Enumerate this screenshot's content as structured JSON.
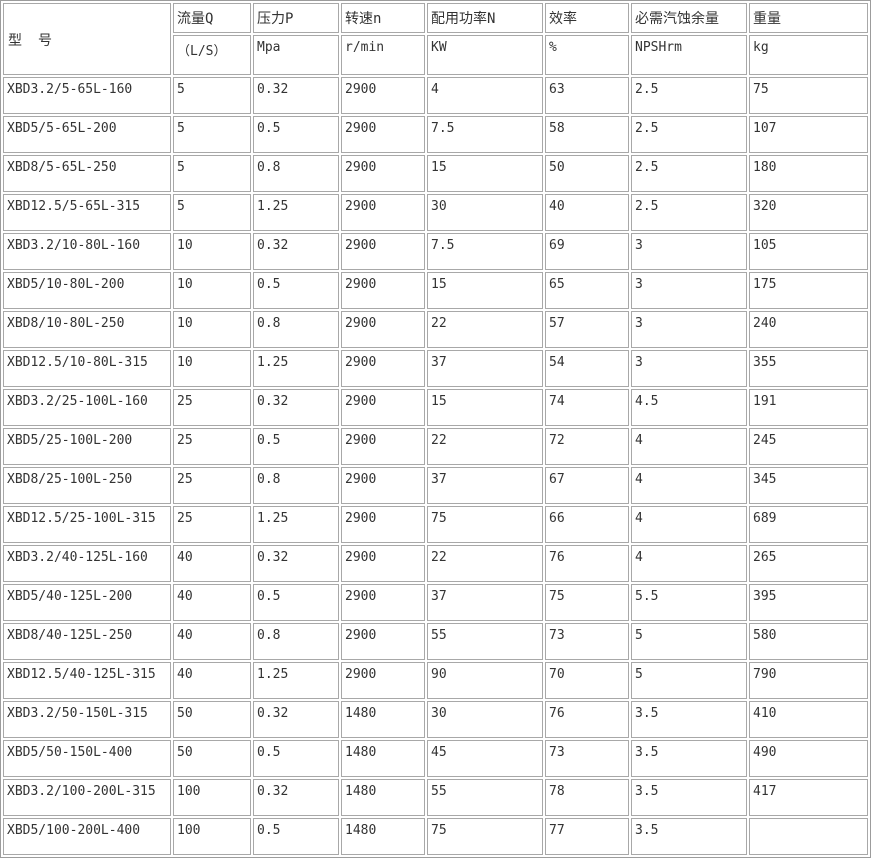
{
  "table": {
    "header": {
      "model_label": "型　号",
      "columns": [
        {
          "title": "流量Q",
          "unit": "（L/S）"
        },
        {
          "title": "压力P",
          "unit": "Mpa"
        },
        {
          "title": "转速n",
          "unit": "r/min"
        },
        {
          "title": "配用功率N",
          "unit": "KW"
        },
        {
          "title": "效率",
          "unit": "%"
        },
        {
          "title": "必需汽蚀余量",
          "unit": "NPSHrm"
        },
        {
          "title": "重量",
          "unit": "kg"
        }
      ]
    },
    "rows": [
      [
        "XBD3.2/5-65L-160",
        "5",
        "0.32",
        "2900",
        "4",
        "63",
        "2.5",
        "75"
      ],
      [
        "XBD5/5-65L-200",
        "5",
        "0.5",
        "2900",
        "7.5",
        "58",
        "2.5",
        "107"
      ],
      [
        "XBD8/5-65L-250",
        "5",
        "0.8",
        "2900",
        "15",
        "50",
        "2.5",
        "180"
      ],
      [
        "XBD12.5/5-65L-315",
        "5",
        "1.25",
        "2900",
        "30",
        "40",
        "2.5",
        "320"
      ],
      [
        "XBD3.2/10-80L-160",
        "10",
        "0.32",
        "2900",
        "7.5",
        "69",
        "3",
        "105"
      ],
      [
        "XBD5/10-80L-200",
        "10",
        "0.5",
        "2900",
        "15",
        "65",
        "3",
        "175"
      ],
      [
        "XBD8/10-80L-250",
        "10",
        "0.8",
        "2900",
        "22",
        "57",
        "3",
        "240"
      ],
      [
        "XBD12.5/10-80L-315",
        "10",
        "1.25",
        "2900",
        "37",
        "54",
        "3",
        "355"
      ],
      [
        "XBD3.2/25-100L-160",
        "25",
        "0.32",
        "2900",
        "15",
        "74",
        "4.5",
        "191"
      ],
      [
        "XBD5/25-100L-200",
        "25",
        "0.5",
        "2900",
        "22",
        "72",
        "4",
        "245"
      ],
      [
        "XBD8/25-100L-250",
        "25",
        "0.8",
        "2900",
        "37",
        "67",
        "4",
        "345"
      ],
      [
        "XBD12.5/25-100L-315",
        "25",
        "1.25",
        "2900",
        "75",
        "66",
        "4",
        "689"
      ],
      [
        "XBD3.2/40-125L-160",
        "40",
        "0.32",
        "2900",
        "22",
        "76",
        "4",
        "265"
      ],
      [
        "XBD5/40-125L-200",
        "40",
        "0.5",
        "2900",
        "37",
        "75",
        "5.5",
        "395"
      ],
      [
        "XBD8/40-125L-250",
        "40",
        "0.8",
        "2900",
        "55",
        "73",
        "5",
        "580"
      ],
      [
        "XBD12.5/40-125L-315",
        "40",
        "1.25",
        "2900",
        "90",
        "70",
        "5",
        "790"
      ],
      [
        "XBD3.2/50-150L-315",
        "50",
        "0.32",
        "1480",
        "30",
        "76",
        "3.5",
        "410"
      ],
      [
        "XBD5/50-150L-400",
        "50",
        "0.5",
        "1480",
        "45",
        "73",
        "3.5",
        "490"
      ],
      [
        "XBD3.2/100-200L-315",
        "100",
        "0.32",
        "1480",
        "55",
        "78",
        "3.5",
        "417"
      ],
      [
        "XBD5/100-200L-400",
        "100",
        "0.5",
        "1480",
        "75",
        "77",
        "3.5",
        ""
      ]
    ]
  },
  "colors": {
    "outer_border": "#9c9c9c",
    "cell_border": "#a8a8a8",
    "text": "#333333",
    "background": "#ffffff"
  }
}
